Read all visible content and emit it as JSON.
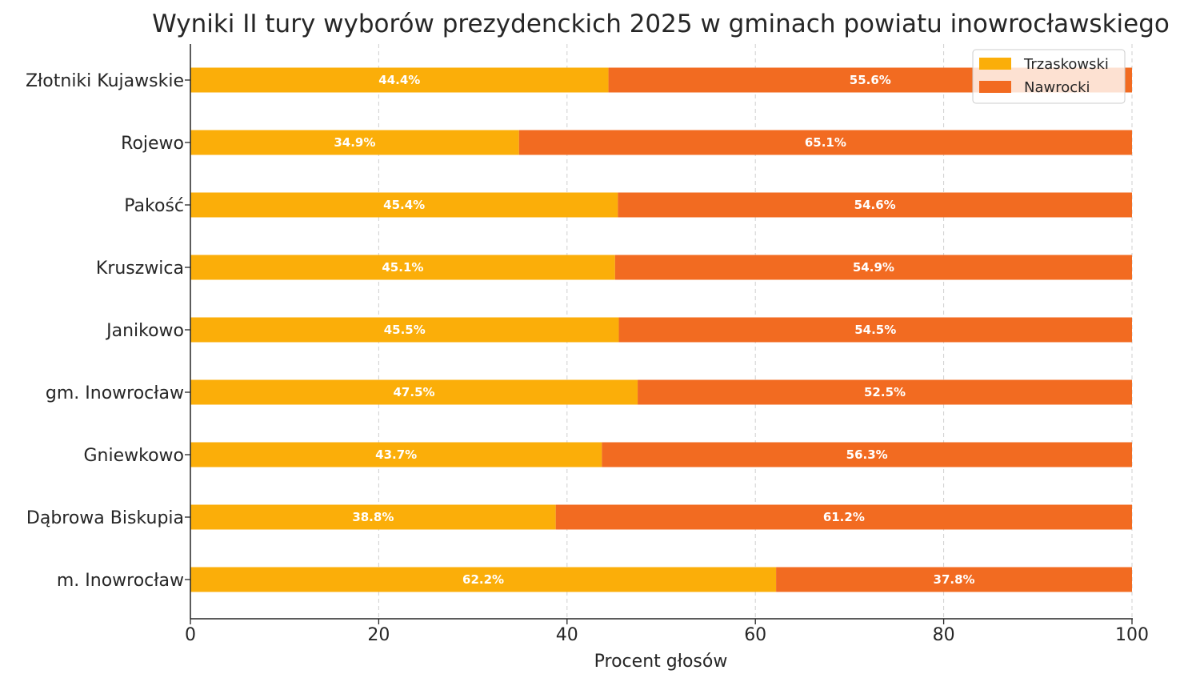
{
  "chart_data": {
    "type": "bar",
    "orientation": "horizontal",
    "stacked": true,
    "title": "Wyniki II tury wyborów prezydenckich 2025 w gminach powiatu inowrocławskiego",
    "xlabel": "Procent głosów",
    "ylabel": "",
    "xlim": [
      0,
      100
    ],
    "xticks": [
      "0",
      "20",
      "40",
      "60",
      "80",
      "100"
    ],
    "grid": "vertical dashed",
    "legend_position": "top-right",
    "categories": [
      "Złotniki Kujawskie",
      "Rojewo",
      "Pakość",
      "Kruszwica",
      "Janikowo",
      "gm. Inowrocław",
      "Gniewkowo",
      "Dąbrowa Biskupia",
      "m. Inowrocław"
    ],
    "series": [
      {
        "name": "Trzaskowski",
        "color": "#FBAE09",
        "values": [
          44.4,
          34.9,
          45.4,
          45.1,
          45.5,
          47.5,
          43.7,
          38.8,
          62.2
        ],
        "labels": [
          "44.4%",
          "34.9%",
          "45.4%",
          "45.1%",
          "45.5%",
          "47.5%",
          "43.7%",
          "38.8%",
          "62.2%"
        ]
      },
      {
        "name": "Nawrocki",
        "color": "#F26B21",
        "values": [
          55.6,
          65.1,
          54.6,
          54.9,
          54.5,
          52.5,
          56.3,
          61.2,
          37.8
        ],
        "labels": [
          "55.6%",
          "65.1%",
          "54.6%",
          "54.9%",
          "54.5%",
          "52.5%",
          "56.3%",
          "61.2%",
          "37.8%"
        ]
      }
    ]
  }
}
